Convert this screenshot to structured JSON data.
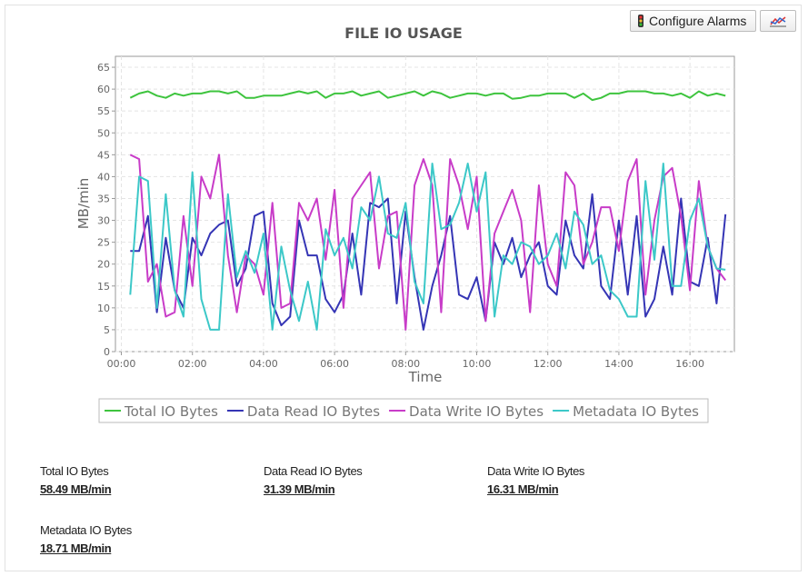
{
  "toolbar": {
    "configure_button": "Configure Alarms"
  },
  "chart_data": {
    "type": "line",
    "title": "FILE IO USAGE",
    "x_label": "Time",
    "y_label": "MB/min",
    "x": [
      15,
      30,
      45,
      60,
      75,
      90,
      105,
      120,
      135,
      150,
      165,
      180,
      195,
      210,
      225,
      240,
      255,
      270,
      285,
      300,
      315,
      330,
      345,
      360,
      375,
      390,
      405,
      420,
      435,
      450,
      465,
      480,
      495,
      510,
      525,
      540,
      555,
      570,
      585,
      600,
      615,
      630,
      645,
      660,
      675,
      690,
      705,
      720,
      735,
      750,
      765,
      780,
      795,
      810,
      825,
      840,
      855,
      870,
      885,
      900,
      915,
      930,
      945,
      960,
      975,
      990,
      1005,
      1020
    ],
    "series": [
      {
        "name": "Total IO Bytes",
        "color": "#3ec43e",
        "values": [
          58,
          59,
          59.5,
          58.5,
          58,
          59,
          58.5,
          59,
          59,
          59.5,
          59.5,
          59,
          59.5,
          58,
          58,
          58.5,
          58.5,
          58.5,
          59,
          59.5,
          59,
          59.5,
          58,
          59,
          59,
          59.5,
          58.5,
          59,
          59.5,
          58,
          58.5,
          59,
          59.5,
          58.5,
          59.5,
          59,
          58,
          58.5,
          59,
          59,
          58.5,
          59,
          59,
          57.8,
          58,
          58.5,
          58.5,
          59,
          59,
          59,
          58,
          59,
          57.5,
          58,
          59,
          59,
          59.5,
          59.5,
          59.5,
          59,
          59,
          58.5,
          59,
          58,
          59.5,
          58.5,
          59,
          58.49
        ]
      },
      {
        "name": "Data Read IO Bytes",
        "color": "#3535b5",
        "values": [
          23,
          23,
          31,
          9,
          26,
          14,
          10,
          26,
          22,
          27,
          29,
          30,
          15,
          19,
          31,
          32,
          11,
          6,
          8,
          30,
          22,
          22,
          12,
          9,
          13,
          27,
          13,
          34,
          33,
          35,
          11,
          32,
          17,
          5,
          15,
          22,
          31,
          13,
          12,
          17,
          7,
          25,
          20,
          26,
          17,
          22,
          25,
          15,
          13,
          30,
          22,
          19,
          36,
          15,
          12,
          30,
          13,
          31,
          8,
          12,
          24,
          13,
          35,
          16,
          15,
          26,
          11,
          31.39
        ]
      },
      {
        "name": "Data Write IO Bytes",
        "color": "#c83cc8",
        "values": [
          45,
          44,
          16,
          20,
          8,
          9,
          31,
          15,
          40,
          35,
          45,
          22,
          9,
          22,
          20,
          13,
          34,
          10,
          11,
          34,
          30,
          35,
          21,
          37,
          10,
          35,
          38,
          41,
          19,
          31,
          32,
          5,
          38,
          44,
          38,
          9,
          44,
          38,
          28,
          40,
          7,
          27,
          32,
          37,
          30,
          9,
          38,
          20,
          15,
          41,
          38,
          20,
          25,
          33,
          33,
          23,
          39,
          44,
          13,
          30,
          40,
          42,
          31,
          14,
          39,
          24,
          19,
          16.31
        ]
      },
      {
        "name": "Metadata IO Bytes",
        "color": "#3cc8c8",
        "values": [
          13,
          40,
          39,
          10,
          36,
          14,
          8,
          41,
          12,
          5,
          5,
          36,
          17,
          23,
          18,
          27,
          5,
          24,
          14,
          7,
          16,
          5,
          28,
          22,
          26,
          19,
          33,
          30,
          40,
          27,
          26,
          34,
          16,
          11,
          43,
          28,
          29,
          34,
          43,
          32,
          41,
          8,
          22,
          20,
          25,
          24,
          20,
          22,
          27,
          19,
          32,
          29,
          20,
          22,
          14,
          12,
          8,
          8,
          39,
          21,
          43,
          15,
          15,
          30,
          35,
          24,
          19,
          18.71
        ]
      }
    ],
    "xlim": [
      -10,
      1035
    ],
    "xticks": [
      {
        "value": 0,
        "label": "00:00"
      },
      {
        "value": 120,
        "label": "02:00"
      },
      {
        "value": 240,
        "label": "04:00"
      },
      {
        "value": 360,
        "label": "06:00"
      },
      {
        "value": 480,
        "label": "08:00"
      },
      {
        "value": 600,
        "label": "10:00"
      },
      {
        "value": 720,
        "label": "12:00"
      },
      {
        "value": 840,
        "label": "14:00"
      },
      {
        "value": 960,
        "label": "16:00"
      }
    ],
    "ylim": [
      0,
      67.5
    ],
    "yticks": [
      0,
      5,
      10,
      15,
      20,
      25,
      30,
      35,
      40,
      45,
      50,
      55,
      60,
      65
    ],
    "grid": true,
    "legend": "bottom"
  },
  "summary": [
    {
      "label": "Total IO Bytes",
      "value": "58.49 MB/min"
    },
    {
      "label": "Data Read IO Bytes",
      "value": "31.39 MB/min"
    },
    {
      "label": "Data Write IO Bytes",
      "value": "16.31 MB/min"
    },
    {
      "label": "Metadata IO Bytes",
      "value": "18.71 MB/min"
    }
  ]
}
